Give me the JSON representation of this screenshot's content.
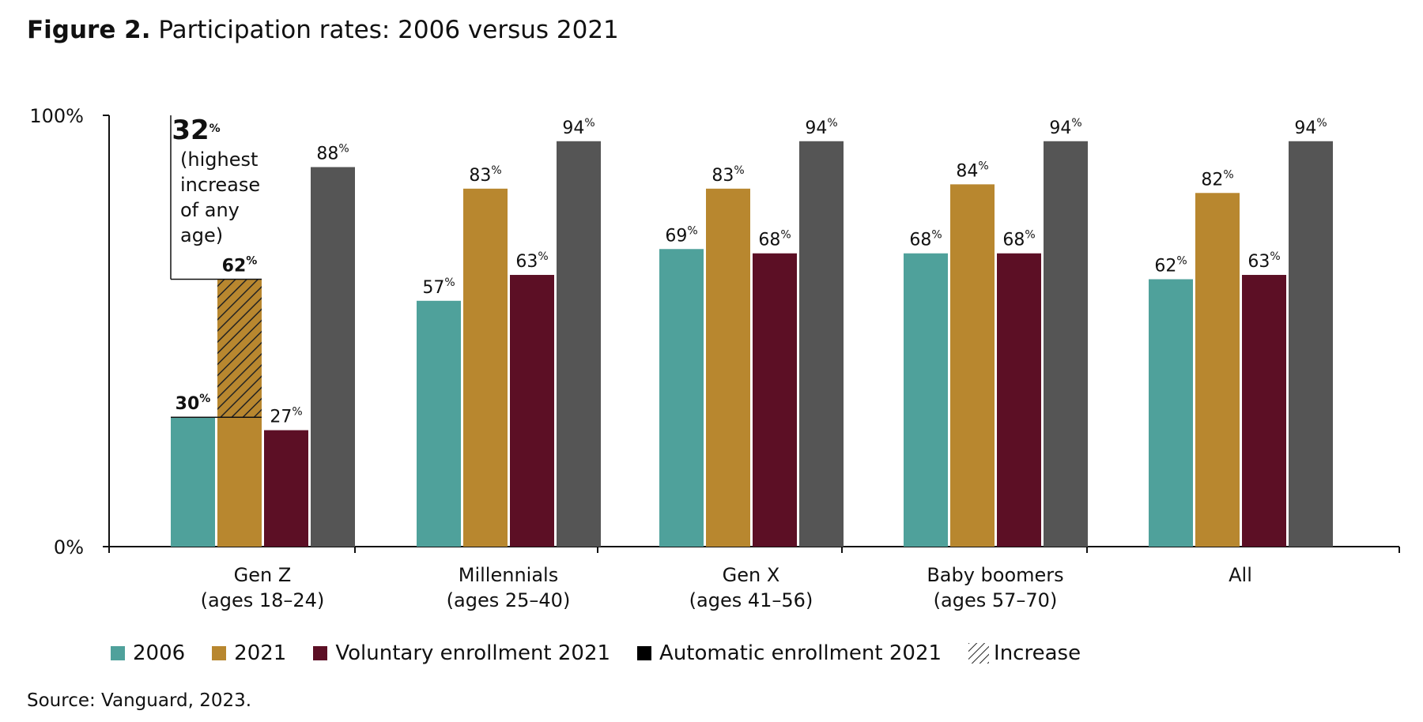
{
  "figure": {
    "label": "Figure 2.",
    "title": "Participation rates: 2006 versus 2021"
  },
  "chart_data": {
    "type": "bar",
    "categories": [
      [
        "Gen Z",
        "(ages 18–24)"
      ],
      [
        "Millennials",
        "(ages 25–40)"
      ],
      [
        "Gen X",
        "(ages 41–56)"
      ],
      [
        "Baby boomers",
        "(ages 57–70)"
      ],
      [
        "All",
        ""
      ]
    ],
    "series": [
      {
        "name": "2006",
        "color": "#4fa19b",
        "values": [
          30,
          57,
          69,
          68,
          62
        ]
      },
      {
        "name": "2021",
        "color": "#b8872f",
        "values": [
          62,
          83,
          83,
          84,
          82
        ]
      },
      {
        "name": "Voluntary enrollment 2021",
        "color": "#5c0f25",
        "values": [
          27,
          63,
          68,
          68,
          63
        ]
      },
      {
        "name": "Automatic enrollment 2021",
        "color": "#555555",
        "values": [
          88,
          94,
          94,
          94,
          94
        ]
      }
    ],
    "ylim": [
      0,
      100
    ],
    "yticks": [
      "0%",
      "100%"
    ],
    "value_suffix": "%",
    "annotation": {
      "value": "32",
      "suffix": "%",
      "lines": [
        "(highest",
        "increase",
        "of any",
        "age)"
      ],
      "from": 30,
      "to": 62,
      "category_index": 0
    },
    "legend_extra": "Increase"
  },
  "source": "Source: Vanguard, 2023."
}
